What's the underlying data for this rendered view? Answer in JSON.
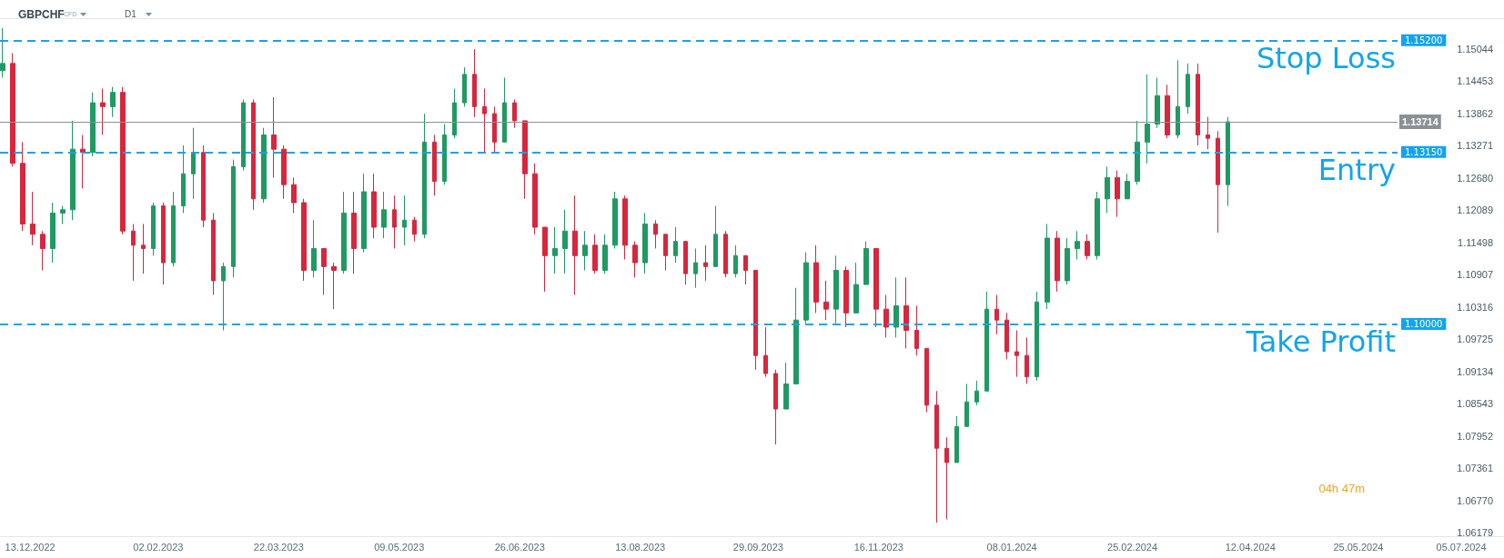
{
  "chart_data": {
    "type": "candlestick",
    "title": "GBPCHF",
    "subtitle": "CFD",
    "xlim": [
      "2022-12-01",
      "2024-07-22"
    ],
    "xticks": [
      {
        "value": "2022-12-13",
        "label": "13.12.2022"
      },
      {
        "value": "2023-02-02",
        "label": "02.02.2023"
      },
      {
        "value": "2023-03-22",
        "label": "22.03.2023"
      },
      {
        "value": "2023-05-09",
        "label": "09.05.2023"
      },
      {
        "value": "2023-06-26",
        "label": "26.06.2023"
      },
      {
        "value": "2023-08-13",
        "label": "13.08.2023"
      },
      {
        "value": "2023-09-29",
        "label": "29.09.2023"
      },
      {
        "value": "2023-11-16",
        "label": "16.11.2023"
      },
      {
        "value": "2024-01-08",
        "label": "08.01.2024"
      },
      {
        "value": "2024-02-25",
        "label": "25.02.2024"
      },
      {
        "value": "2024-04-12",
        "label": "12.04.2024"
      },
      {
        "value": "2024-05-25",
        "label": "25.05.2024"
      },
      {
        "value": "2024-07-05",
        "label": "05.07.2024"
      }
    ],
    "ylim": [
      1.0612,
      1.1561
    ],
    "yticks": [
      1.06179,
      {
        "value": 1.0677,
        "label": "1.06770"
      },
      1.07361,
      1.07952,
      1.08543,
      1.09134,
      1.09725,
      1.10316,
      1.10907,
      1.11498,
      1.12089,
      {
        "value": 1.1268,
        "label": "1.12680"
      },
      1.13271,
      1.13862,
      1.14453,
      1.15044
    ],
    "x": [
      "2022-12-02",
      "2022-12-06",
      "2022-12-10",
      "2022-12-14",
      "2022-12-18",
      "2022-12-22",
      "2022-12-26",
      "2022-12-30",
      "2023-01-03",
      "2023-01-07",
      "2023-01-11",
      "2023-01-15",
      "2023-01-19",
      "2023-01-23",
      "2023-01-27",
      "2023-01-31",
      "2023-02-04",
      "2023-02-08",
      "2023-02-12",
      "2023-02-16",
      "2023-02-20",
      "2023-02-24",
      "2023-02-28",
      "2023-03-04",
      "2023-03-08",
      "2023-03-12",
      "2023-03-16",
      "2023-03-20",
      "2023-03-24",
      "2023-03-28",
      "2023-04-01",
      "2023-04-05",
      "2023-04-09",
      "2023-04-13",
      "2023-04-17",
      "2023-04-21",
      "2023-04-25",
      "2023-04-29",
      "2023-05-03",
      "2023-05-07",
      "2023-05-11",
      "2023-05-15",
      "2023-05-19",
      "2023-05-23",
      "2023-05-27",
      "2023-05-31",
      "2023-06-04",
      "2023-06-08",
      "2023-06-12",
      "2023-06-16",
      "2023-06-20",
      "2023-06-24",
      "2023-06-28",
      "2023-07-02",
      "2023-07-06",
      "2023-07-10",
      "2023-07-14",
      "2023-07-18",
      "2023-07-22",
      "2023-07-26",
      "2023-07-30",
      "2023-08-03",
      "2023-08-07",
      "2023-08-11",
      "2023-08-15",
      "2023-08-19",
      "2023-08-23",
      "2023-08-27",
      "2023-08-31",
      "2023-09-04",
      "2023-09-08",
      "2023-09-12",
      "2023-09-16",
      "2023-09-20",
      "2023-09-24",
      "2023-09-28",
      "2023-10-02",
      "2023-10-06",
      "2023-10-10",
      "2023-10-14",
      "2023-10-18",
      "2023-10-22",
      "2023-10-26",
      "2023-10-30",
      "2023-11-03",
      "2023-11-07",
      "2023-11-11",
      "2023-11-15",
      "2023-11-19",
      "2023-11-23",
      "2023-11-27",
      "2023-12-01",
      "2023-12-05",
      "2023-12-09",
      "2023-12-13",
      "2023-12-17",
      "2023-12-21",
      "2023-12-25",
      "2023-12-29",
      "2024-01-02",
      "2024-01-06",
      "2024-01-10",
      "2024-01-14",
      "2024-01-18",
      "2024-01-22",
      "2024-01-26",
      "2024-01-30",
      "2024-02-03",
      "2024-02-07",
      "2024-02-11",
      "2024-02-15",
      "2024-02-19",
      "2024-02-23",
      "2024-02-27",
      "2024-03-02",
      "2024-03-06",
      "2024-03-10",
      "2024-03-14",
      "2024-03-18",
      "2024-03-22",
      "2024-03-26",
      "2024-03-30",
      "2024-04-03"
    ],
    "ohlc": [
      [
        1.1465,
        1.1543,
        1.1452,
        1.1478
      ],
      [
        1.1478,
        1.1497,
        1.1289,
        1.1295
      ],
      [
        1.1295,
        1.1334,
        1.1171,
        1.1184
      ],
      [
        1.1184,
        1.1243,
        1.1145,
        1.1165
      ],
      [
        1.1165,
        1.1171,
        1.1099,
        1.1139
      ],
      [
        1.1139,
        1.1223,
        1.1113,
        1.1204
      ],
      [
        1.1204,
        1.1217,
        1.1184,
        1.121
      ],
      [
        1.121,
        1.1373,
        1.1191,
        1.1321
      ],
      [
        1.1321,
        1.1347,
        1.1249,
        1.1315
      ],
      [
        1.1315,
        1.1425,
        1.1308,
        1.1406
      ],
      [
        1.1406,
        1.1432,
        1.1347,
        1.1399
      ],
      [
        1.1399,
        1.1435,
        1.138,
        1.1425
      ],
      [
        1.1425,
        1.1435,
        1.1165,
        1.1171
      ],
      [
        1.1171,
        1.1184,
        1.108,
        1.1145
      ],
      [
        1.1145,
        1.1184,
        1.1093,
        1.1139
      ],
      [
        1.1139,
        1.1223,
        1.1126,
        1.1217
      ],
      [
        1.1217,
        1.1223,
        1.1073,
        1.1113
      ],
      [
        1.1113,
        1.1243,
        1.1106,
        1.1217
      ],
      [
        1.1217,
        1.1328,
        1.1204,
        1.1276
      ],
      [
        1.1276,
        1.136,
        1.123,
        1.1315
      ],
      [
        1.1315,
        1.1328,
        1.1178,
        1.1191
      ],
      [
        1.1191,
        1.1204,
        1.1054,
        1.108
      ],
      [
        1.108,
        1.1113,
        1.0989,
        1.1106
      ],
      [
        1.1106,
        1.1302,
        1.1086,
        1.1289
      ],
      [
        1.1289,
        1.1412,
        1.1282,
        1.1406
      ],
      [
        1.1406,
        1.1412,
        1.121,
        1.123
      ],
      [
        1.123,
        1.136,
        1.1223,
        1.1347
      ],
      [
        1.1347,
        1.1416,
        1.1269,
        1.1321
      ],
      [
        1.1321,
        1.1328,
        1.123,
        1.1256
      ],
      [
        1.1256,
        1.1269,
        1.1204,
        1.1223
      ],
      [
        1.1223,
        1.123,
        1.108,
        1.1099
      ],
      [
        1.1099,
        1.1191,
        1.1086,
        1.1139
      ],
      [
        1.1139,
        1.1139,
        1.1054,
        1.1106
      ],
      [
        1.1106,
        1.1113,
        1.1028,
        1.1099
      ],
      [
        1.1099,
        1.1243,
        1.1093,
        1.1204
      ],
      [
        1.1204,
        1.1243,
        1.1093,
        1.1139
      ],
      [
        1.1139,
        1.1276,
        1.1132,
        1.1243
      ],
      [
        1.1243,
        1.1276,
        1.1158,
        1.1178
      ],
      [
        1.1178,
        1.1243,
        1.1158,
        1.121
      ],
      [
        1.121,
        1.1236,
        1.1139,
        1.1178
      ],
      [
        1.1178,
        1.1236,
        1.1145,
        1.1191
      ],
      [
        1.1191,
        1.1197,
        1.1152,
        1.1165
      ],
      [
        1.1165,
        1.1386,
        1.1158,
        1.1334
      ],
      [
        1.1334,
        1.1347,
        1.1236,
        1.1262
      ],
      [
        1.1262,
        1.1367,
        1.1256,
        1.1347
      ],
      [
        1.1347,
        1.1432,
        1.1341,
        1.1406
      ],
      [
        1.1406,
        1.1471,
        1.1399,
        1.1458
      ],
      [
        1.1458,
        1.1504,
        1.138,
        1.1399
      ],
      [
        1.1399,
        1.1432,
        1.1315,
        1.1386
      ],
      [
        1.1386,
        1.1399,
        1.1315,
        1.1334
      ],
      [
        1.1334,
        1.1452,
        1.1334,
        1.1406
      ],
      [
        1.1406,
        1.1412,
        1.136,
        1.1373
      ],
      [
        1.1373,
        1.1373,
        1.123,
        1.1276
      ],
      [
        1.1276,
        1.1295,
        1.1165,
        1.1178
      ],
      [
        1.1178,
        1.1178,
        1.106,
        1.1126
      ],
      [
        1.1126,
        1.1178,
        1.1093,
        1.1139
      ],
      [
        1.1139,
        1.121,
        1.1093,
        1.1171
      ],
      [
        1.1171,
        1.1236,
        1.1054,
        1.1126
      ],
      [
        1.1126,
        1.1171,
        1.1099,
        1.1145
      ],
      [
        1.1145,
        1.1165,
        1.1093,
        1.1099
      ],
      [
        1.1099,
        1.1165,
        1.1093,
        1.1145
      ],
      [
        1.1145,
        1.1243,
        1.1139,
        1.123
      ],
      [
        1.123,
        1.1236,
        1.1119,
        1.1145
      ],
      [
        1.1145,
        1.1152,
        1.1086,
        1.1113
      ],
      [
        1.1113,
        1.1204,
        1.1093,
        1.1184
      ],
      [
        1.1184,
        1.1191,
        1.1139,
        1.1165
      ],
      [
        1.1165,
        1.1165,
        1.1099,
        1.1126
      ],
      [
        1.1126,
        1.1178,
        1.1113,
        1.1152
      ],
      [
        1.1152,
        1.1152,
        1.1073,
        1.1093
      ],
      [
        1.1093,
        1.1139,
        1.1067,
        1.1113
      ],
      [
        1.1113,
        1.1145,
        1.108,
        1.1106
      ],
      [
        1.1106,
        1.1217,
        1.1106,
        1.1165
      ],
      [
        1.1165,
        1.1171,
        1.1086,
        1.1093
      ],
      [
        1.1093,
        1.1145,
        1.1086,
        1.1126
      ],
      [
        1.1126,
        1.1126,
        1.1073,
        1.1099
      ],
      [
        1.1099,
        1.1099,
        1.0917,
        1.0943
      ],
      [
        1.0943,
        1.0995,
        1.0904,
        1.091
      ],
      [
        1.091,
        1.0917,
        1.078,
        1.0845
      ],
      [
        1.0845,
        1.093,
        1.0845,
        1.0891
      ],
      [
        1.0891,
        1.1067,
        1.0891,
        1.1008
      ],
      [
        1.1008,
        1.1132,
        1.1002,
        1.1113
      ],
      [
        1.1113,
        1.1145,
        1.1021,
        1.1041
      ],
      [
        1.1041,
        1.108,
        1.1008,
        1.1028
      ],
      [
        1.1028,
        1.1126,
        1.1002,
        1.1099
      ],
      [
        1.1099,
        1.1106,
        1.0995,
        1.1021
      ],
      [
        1.1021,
        1.1113,
        1.1021,
        1.1073
      ],
      [
        1.1073,
        1.1152,
        1.1073,
        1.1139
      ],
      [
        1.1139,
        1.1139,
        1.0995,
        1.1028
      ],
      [
        1.1028,
        1.1054,
        1.0976,
        1.0995
      ],
      [
        1.0995,
        1.1086,
        1.0976,
        1.1034
      ],
      [
        1.1034,
        1.1086,
        1.0956,
        1.0989
      ],
      [
        1.0989,
        1.1034,
        1.0943,
        1.0956
      ],
      [
        1.0956,
        1.0956,
        1.0839,
        1.0852
      ],
      [
        1.0852,
        1.0878,
        1.0637,
        1.0773
      ],
      [
        1.0773,
        1.0793,
        1.0643,
        1.0747
      ],
      [
        1.0747,
        1.0832,
        1.0747,
        1.0813
      ],
      [
        1.0813,
        1.0891,
        1.0813,
        1.0858
      ],
      [
        1.0858,
        1.0897,
        1.0852,
        1.0878
      ],
      [
        1.0878,
        1.106,
        1.0878,
        1.1028
      ],
      [
        1.1028,
        1.1054,
        1.0982,
        1.1008
      ],
      [
        1.1008,
        1.1021,
        1.0936,
        1.095
      ],
      [
        1.095,
        1.0989,
        1.0904,
        1.0943
      ],
      [
        1.0943,
        1.0976,
        1.0891,
        1.0904
      ],
      [
        1.0904,
        1.106,
        1.0897,
        1.1041
      ],
      [
        1.1041,
        1.1184,
        1.1028,
        1.1158
      ],
      [
        1.1158,
        1.1171,
        1.106,
        1.108
      ],
      [
        1.108,
        1.1158,
        1.1073,
        1.1139
      ],
      [
        1.1139,
        1.1171,
        1.1119,
        1.1152
      ],
      [
        1.1152,
        1.1165,
        1.1119,
        1.1126
      ],
      [
        1.1126,
        1.1243,
        1.1119,
        1.123
      ],
      [
        1.123,
        1.1289,
        1.1204,
        1.1269
      ],
      [
        1.1269,
        1.1282,
        1.1197,
        1.123
      ],
      [
        1.123,
        1.1276,
        1.123,
        1.1262
      ],
      [
        1.1262,
        1.1373,
        1.1256,
        1.1334
      ],
      [
        1.1334,
        1.1458,
        1.1295,
        1.1367
      ],
      [
        1.1367,
        1.1452,
        1.136,
        1.1419
      ],
      [
        1.1419,
        1.1439,
        1.1341,
        1.1347
      ],
      [
        1.1347,
        1.1484,
        1.1341,
        1.1399
      ],
      [
        1.1399,
        1.1478,
        1.1386,
        1.1458
      ],
      [
        1.1458,
        1.1478,
        1.1328,
        1.1347
      ],
      [
        1.1347,
        1.138,
        1.1321,
        1.1341
      ],
      [
        1.1341,
        1.1354,
        1.1168,
        1.1256
      ],
      [
        1.1256,
        1.138,
        1.1217,
        1.13714
      ]
    ],
    "colors": [
      "#1f9a63",
      "#d8263d",
      "#d8263d",
      "#d8263d",
      "#d8263d",
      "#1f9a63",
      "#1f9a63",
      "#1f9a63",
      "#d8263d",
      "#1f9a63",
      "#d8263d",
      "#1f9a63",
      "#d8263d",
      "#d8263d",
      "#d8263d",
      "#1f9a63",
      "#d8263d",
      "#1f9a63",
      "#1f9a63",
      "#1f9a63",
      "#d8263d",
      "#d8263d",
      "#1f9a63",
      "#1f9a63",
      "#1f9a63",
      "#d8263d",
      "#1f9a63",
      "#d8263d",
      "#d8263d",
      "#d8263d",
      "#d8263d",
      "#1f9a63",
      "#d8263d",
      "#d8263d",
      "#1f9a63",
      "#d8263d",
      "#1f9a63",
      "#d8263d",
      "#1f9a63",
      "#d8263d",
      "#1f9a63",
      "#d8263d",
      "#1f9a63",
      "#d8263d",
      "#1f9a63",
      "#1f9a63",
      "#1f9a63",
      "#d8263d",
      "#d8263d",
      "#d8263d",
      "#1f9a63",
      "#d8263d",
      "#d8263d",
      "#d8263d",
      "#d8263d",
      "#1f9a63",
      "#1f9a63",
      "#d8263d",
      "#1f9a63",
      "#d8263d",
      "#1f9a63",
      "#1f9a63",
      "#d8263d",
      "#d8263d",
      "#1f9a63",
      "#d8263d",
      "#d8263d",
      "#1f9a63",
      "#d8263d",
      "#1f9a63",
      "#d8263d",
      "#1f9a63",
      "#d8263d",
      "#1f9a63",
      "#d8263d",
      "#d8263d",
      "#d8263d",
      "#d8263d",
      "#1f9a63",
      "#1f9a63",
      "#1f9a63",
      "#d8263d",
      "#d8263d",
      "#1f9a63",
      "#d8263d",
      "#1f9a63",
      "#1f9a63",
      "#d8263d",
      "#d8263d",
      "#1f9a63",
      "#d8263d",
      "#d8263d",
      "#d8263d",
      "#d8263d",
      "#d8263d",
      "#1f9a63",
      "#1f9a63",
      "#1f9a63",
      "#1f9a63",
      "#d8263d",
      "#d8263d",
      "#d8263d",
      "#d8263d",
      "#1f9a63",
      "#1f9a63",
      "#d8263d",
      "#1f9a63",
      "#1f9a63",
      "#d8263d",
      "#1f9a63",
      "#1f9a63",
      "#d8263d",
      "#1f9a63",
      "#1f9a63",
      "#1f9a63",
      "#1f9a63",
      "#d8263d",
      "#1f9a63",
      "#1f9a63",
      "#d8263d",
      "#d8263d",
      "#d8263d",
      "#1f9a63"
    ],
    "ref_lines": [
      {
        "axis": "y",
        "value": 1.152,
        "label": "Stop Loss",
        "color": "#12a4ef",
        "line_style": "dashed"
      },
      {
        "axis": "y",
        "value": 1.1315,
        "label": "Entry",
        "color": "#12a4ef",
        "line_style": "dashed"
      },
      {
        "axis": "y",
        "value": 1.1,
        "label": "Take Profit",
        "color": "#12a4ef",
        "line_style": "dashed"
      },
      {
        "axis": "y",
        "value": 1.13714,
        "label": "1.13714",
        "color": "#8a9095",
        "line_style": "solid"
      }
    ],
    "annotations": [
      "D1",
      "1.15200",
      "1.13150",
      "1.10000",
      "04h 47m"
    ]
  }
}
